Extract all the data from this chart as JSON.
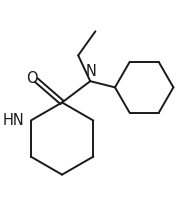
{
  "background_color": "#ffffff",
  "line_color": "#1a1a1a",
  "bond_width": 1.4,
  "font_size": 10.5,
  "figsize": [
    1.93,
    2.06
  ],
  "dpi": 100,
  "O_label": "O",
  "N_label": "N",
  "HN_label": "HN"
}
